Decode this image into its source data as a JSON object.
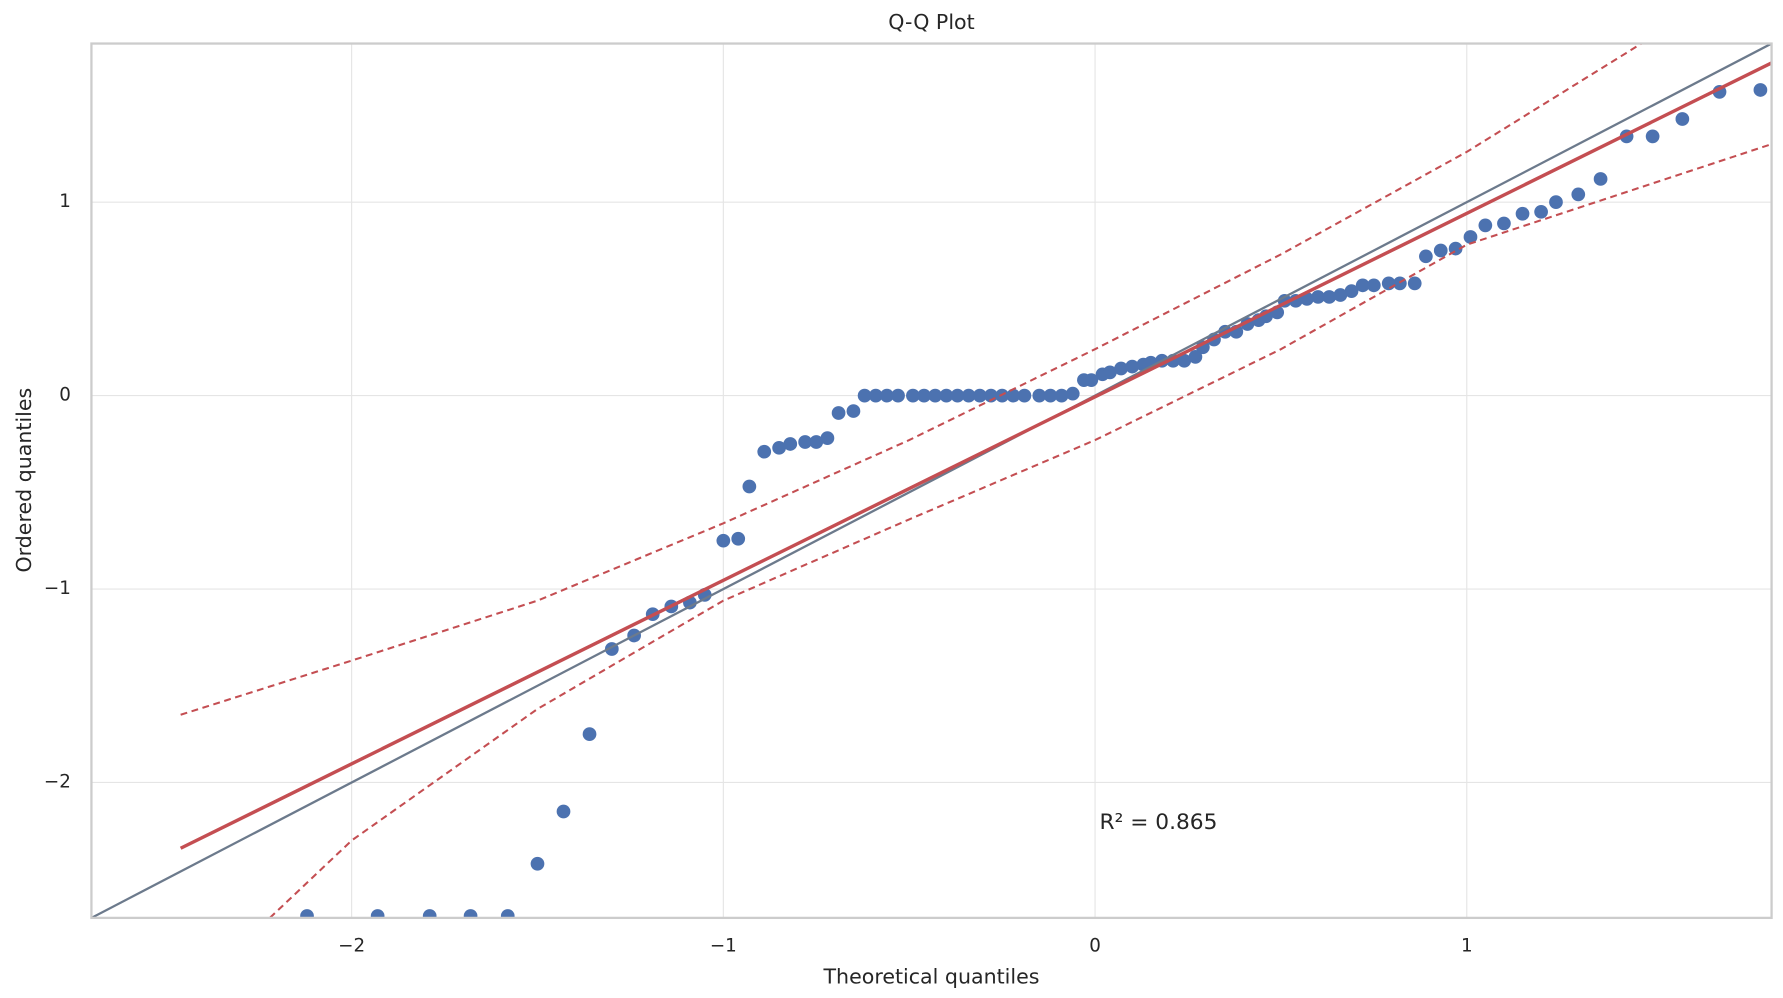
{
  "chart_data": {
    "type": "scatter",
    "title": "Q-Q Plot",
    "x_label": "Theoretical quantiles",
    "y_label": "Ordered quantiles",
    "annotation": "R² = 0.865",
    "xlim": [
      -2.7,
      1.82
    ],
    "ylim": [
      -2.7,
      1.82
    ],
    "xticks": [
      {
        "value": -2,
        "label": "−2"
      },
      {
        "value": -1,
        "label": "−1"
      },
      0,
      1
    ],
    "yticks": [
      {
        "value": -2,
        "label": "−2"
      },
      {
        "value": -1,
        "label": "−1"
      },
      0,
      1
    ],
    "grid": true,
    "color": "#4c72b0",
    "x": [
      -2.12,
      -1.93,
      -1.79,
      -1.68,
      -1.58,
      -1.5,
      -1.43,
      -1.36,
      -1.3,
      -1.24,
      -1.19,
      -1.14,
      -1.09,
      -1.05,
      -1.0,
      -0.96,
      -0.93,
      -0.89,
      -0.85,
      -0.82,
      -0.78,
      -0.75,
      -0.72,
      -0.69,
      -0.65,
      -0.62,
      -0.59,
      -0.56,
      -0.53,
      -0.49,
      -0.46,
      -0.43,
      -0.4,
      -0.37,
      -0.34,
      -0.31,
      -0.28,
      -0.25,
      -0.22,
      -0.19,
      -0.15,
      -0.12,
      -0.09,
      -0.06,
      -0.03,
      -0.01,
      0.02,
      0.04,
      0.07,
      0.1,
      0.13,
      0.15,
      0.18,
      0.21,
      0.24,
      0.27,
      0.29,
      0.32,
      0.35,
      0.38,
      0.41,
      0.44,
      0.46,
      0.49,
      0.51,
      0.54,
      0.57,
      0.6,
      0.63,
      0.66,
      0.69,
      0.72,
      0.75,
      0.79,
      0.82,
      0.86,
      0.89,
      0.93,
      0.97,
      1.01,
      1.05,
      1.1,
      1.15,
      1.2,
      1.24,
      1.3,
      1.36,
      1.43,
      1.5,
      1.58,
      1.68,
      1.79
    ],
    "y": [
      -2.69,
      -2.69,
      -2.69,
      -2.69,
      -2.69,
      -2.42,
      -2.15,
      -1.75,
      -1.31,
      -1.24,
      -1.13,
      -1.09,
      -1.07,
      -1.03,
      -0.75,
      -0.74,
      -0.47,
      -0.29,
      -0.27,
      -0.25,
      -0.24,
      -0.24,
      -0.22,
      -0.09,
      -0.08,
      0,
      0,
      0,
      0,
      0,
      0,
      0,
      0,
      0,
      0,
      0,
      0,
      0,
      0,
      0,
      0,
      0,
      0,
      0.01,
      0.08,
      0.08,
      0.11,
      0.12,
      0.14,
      0.15,
      0.16,
      0.17,
      0.18,
      0.18,
      0.18,
      0.2,
      0.25,
      0.29,
      0.33,
      0.33,
      0.37,
      0.39,
      0.41,
      0.43,
      0.49,
      0.49,
      0.5,
      0.51,
      0.51,
      0.52,
      0.54,
      0.57,
      0.57,
      0.58,
      0.58,
      0.58,
      0.72,
      0.75,
      0.76,
      0.82,
      0.88,
      0.89,
      0.94,
      0.95,
      1.0,
      1.04,
      1.12,
      1.34,
      1.34,
      1.43,
      1.57,
      1.58
    ],
    "reference_line": {
      "color": "#6c7a8c",
      "x": [
        -2.7,
        1.82
      ],
      "y": [
        -2.7,
        1.82
      ]
    },
    "fit_line": {
      "color": "#c44e52",
      "x": [
        -2.46,
        1.82
      ],
      "y": [
        -2.34,
        1.72
      ]
    },
    "upper_band": {
      "color": "#c44e52",
      "x": [
        -2.46,
        -2,
        -1.5,
        -1,
        -0.5,
        0,
        0.5,
        1,
        1.47
      ],
      "y": [
        -1.65,
        -1.37,
        -1.06,
        -0.66,
        -0.23,
        0.24,
        0.73,
        1.26,
        1.82
      ]
    },
    "lower_band": {
      "color": "#c44e52",
      "x": [
        -2.22,
        -2,
        -1.5,
        -1,
        -0.5,
        0,
        0.5,
        1,
        1.82
      ],
      "y": [
        -2.7,
        -2.3,
        -1.62,
        -1.06,
        -0.64,
        -0.23,
        0.24,
        0.78,
        1.3
      ]
    }
  }
}
